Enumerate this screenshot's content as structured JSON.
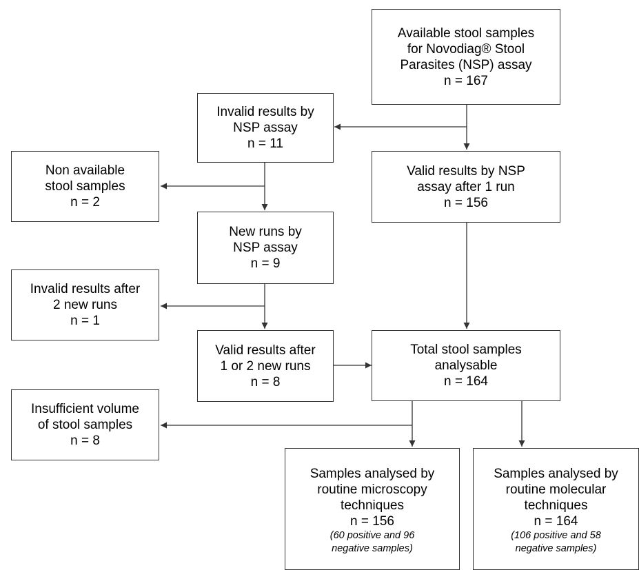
{
  "boxes": {
    "available": {
      "lines": [
        "Available stool samples",
        "for Novodiag® Stool",
        "Parasites (NSP) assay",
        "n = 167"
      ]
    },
    "invalid": {
      "lines": [
        "Invalid results by",
        "NSP assay",
        "n = 11"
      ]
    },
    "valid_first": {
      "lines": [
        "Valid results by NSP",
        "assay after 1 run",
        "n = 156"
      ]
    },
    "non_available": {
      "lines": [
        "Non available",
        "stool samples",
        "n = 2"
      ]
    },
    "new_runs": {
      "lines": [
        "New runs by",
        "NSP assay",
        "n = 9"
      ]
    },
    "invalid_after": {
      "lines": [
        "Invalid results after",
        "2 new runs",
        "n = 1"
      ]
    },
    "valid_after": {
      "lines": [
        "Valid results after",
        "1 or 2 new runs",
        "n = 8"
      ]
    },
    "total": {
      "lines": [
        "Total stool samples",
        "analysable",
        "n = 164"
      ]
    },
    "insufficient": {
      "lines": [
        "Insufficient volume",
        "of stool samples",
        "n = 8"
      ]
    },
    "microscopy": {
      "lines": [
        "Samples analysed by",
        "routine microscopy",
        "techniques",
        "n = 156"
      ],
      "note": [
        "(60 positive and 96",
        "negative samples)"
      ]
    },
    "molecular": {
      "lines": [
        "Samples analysed by",
        "routine molecular",
        "techniques",
        "n = 164"
      ],
      "note": [
        "(106 positive and 58",
        "negative samples)"
      ]
    }
  }
}
